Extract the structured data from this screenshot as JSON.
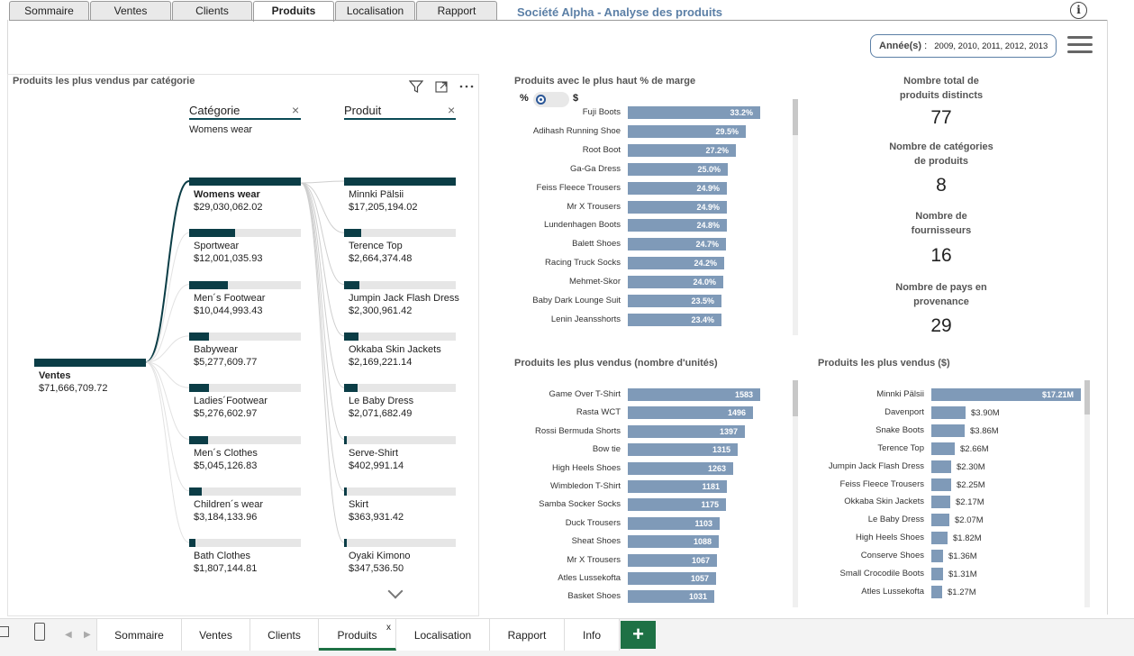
{
  "top_tabs": [
    "Sommaire",
    "Ventes",
    "Clients",
    "Produits",
    "Localisation",
    "Rapport"
  ],
  "app_title": "Société Alpha - Analyse des produits",
  "info_icon": "i",
  "slicer": {
    "label": "Année(s)",
    "colon": ":",
    "value": "2009, 2010, 2011, 2012, 2013"
  },
  "decomp": {
    "title": "Produits les plus vendus par catégorie",
    "level1_header": "Catégorie",
    "level1_filter": "Womens wear",
    "level2_header": "Produit",
    "close_glyph": "×",
    "root": {
      "name": "Ventes",
      "value": "$71,666,709.72"
    },
    "categories": [
      {
        "name": "Womens wear",
        "value": "$29,030,062.02",
        "pct": 1.0
      },
      {
        "name": "Sportwear",
        "value": "$12,001,035.93",
        "pct": 0.41
      },
      {
        "name": "Men´s Footwear",
        "value": "$10,044,993.43",
        "pct": 0.35
      },
      {
        "name": "Babywear",
        "value": "$5,277,609.77",
        "pct": 0.18
      },
      {
        "name": "Ladies´Footwear",
        "value": "$5,276,602.97",
        "pct": 0.18
      },
      {
        "name": "Men´s Clothes",
        "value": "$5,045,126.83",
        "pct": 0.17
      },
      {
        "name": "Children´s wear",
        "value": "$3,184,133.96",
        "pct": 0.11
      },
      {
        "name": "Bath Clothes",
        "value": "$1,807,144.81",
        "pct": 0.06
      }
    ],
    "products": [
      {
        "name": "Minnki Pälsii",
        "value": "$17,205,194.02",
        "pct": 1.0
      },
      {
        "name": "Terence Top",
        "value": "$2,664,374.48",
        "pct": 0.155
      },
      {
        "name": "Jumpin Jack Flash Dress",
        "value": "$2,300,961.42",
        "pct": 0.134
      },
      {
        "name": "Okkaba Skin Jackets",
        "value": "$2,169,221.14",
        "pct": 0.126
      },
      {
        "name": "Le Baby Dress",
        "value": "$2,071,682.49",
        "pct": 0.12
      },
      {
        "name": "Serve-Shirt",
        "value": "$402,991.14",
        "pct": 0.023
      },
      {
        "name": "Skirt",
        "value": "$363,931.42",
        "pct": 0.021
      },
      {
        "name": "Oyaki Kimono",
        "value": "$347,536.50",
        "pct": 0.02
      }
    ]
  },
  "margin_chart": {
    "title": "Produits avec le plus haut % de marge",
    "toggle_left": "%",
    "toggle_right": "$"
  },
  "units_chart": {
    "title": "Produits les plus vendus (nombre d'unités)"
  },
  "sales_chart": {
    "title": "Produits les plus vendus ($)"
  },
  "chart_data": [
    {
      "type": "bar",
      "title": "Produits avec le plus haut % de marge",
      "orientation": "horizontal",
      "categories": [
        "Fuji Boots",
        "Adihash Running Shoe",
        "Root Boot",
        "Ga-Ga Dress",
        "Feiss Fleece Trousers",
        "Mr X Trousers",
        "Lundenhagen Boots",
        "Balett Shoes",
        "Racing Truck Socks",
        "Mehmet-Skor",
        "Baby Dark Lounge Suit",
        "Lenin Jeansshorts"
      ],
      "values": [
        33.2,
        29.5,
        27.2,
        25.0,
        24.9,
        24.9,
        24.8,
        24.7,
        24.2,
        24.0,
        23.5,
        23.4
      ],
      "labels": [
        "33.2%",
        "29.5%",
        "27.2%",
        "25.0%",
        "24.9%",
        "24.9%",
        "24.8%",
        "24.7%",
        "24.2%",
        "24.0%",
        "23.5%",
        "23.4%"
      ],
      "xlim": [
        0,
        35
      ]
    },
    {
      "type": "bar",
      "title": "Produits les plus vendus (nombre d'unités)",
      "orientation": "horizontal",
      "categories": [
        "Game Over T-Shirt",
        "Rasta WCT",
        "Rossi Bermuda Shorts",
        "Bow tie",
        "High Heels Shoes",
        "Wimbledon T-Shirt",
        "Samba Socker Socks",
        "Duck Trousers",
        "Sheat Shoes",
        "Mr X Trousers",
        "Atles Lussekofta",
        "Basket Shoes"
      ],
      "values": [
        1583,
        1496,
        1397,
        1315,
        1263,
        1181,
        1175,
        1103,
        1088,
        1067,
        1057,
        1031
      ],
      "labels": [
        "1583",
        "1496",
        "1397",
        "1315",
        "1263",
        "1181",
        "1175",
        "1103",
        "1088",
        "1067",
        "1057",
        "1031"
      ],
      "xlim": [
        0,
        1650
      ]
    },
    {
      "type": "bar",
      "title": "Produits les plus vendus ($)",
      "orientation": "horizontal",
      "categories": [
        "Minnki Pälsii",
        "Davenport",
        "Snake Boots",
        "Terence Top",
        "Jumpin Jack Flash Dress",
        "Feiss Fleece Trousers",
        "Okkaba Skin Jackets",
        "Le Baby Dress",
        "High Heels Shoes",
        "Conserve Shoes",
        "Small Crocodile Boots",
        "Atles Lussekofta"
      ],
      "values": [
        17.21,
        3.9,
        3.86,
        2.66,
        2.3,
        2.25,
        2.17,
        2.07,
        1.82,
        1.36,
        1.31,
        1.27
      ],
      "labels": [
        "$17.21M",
        "$3.90M",
        "$3.86M",
        "$2.66M",
        "$2.30M",
        "$2.25M",
        "$2.17M",
        "$2.07M",
        "$1.82M",
        "$1.36M",
        "$1.31M",
        "$1.27M"
      ],
      "xlim": [
        0,
        17.5
      ]
    }
  ],
  "kpis": [
    {
      "label1": "Nombre total de",
      "label2": "produits distincts",
      "value": "77"
    },
    {
      "label1": "Nombre de catégories",
      "label2": "de produits",
      "value": "8"
    },
    {
      "label1": "Nombre de",
      "label2": "fournisseurs",
      "value": "16"
    },
    {
      "label1": "Nombre de pays en",
      "label2": "provenance",
      "value": "29"
    }
  ],
  "bottom_tabs": [
    "Sommaire",
    "Ventes",
    "Clients",
    "Produits",
    "Localisation",
    "Rapport",
    "Info"
  ],
  "bottom_active_close": "x",
  "add_tab": "+",
  "colors": {
    "bar": "#7f9ab8",
    "tree": "#0b3d46",
    "accent": "#1e7145",
    "title": "#5b7fa6"
  }
}
